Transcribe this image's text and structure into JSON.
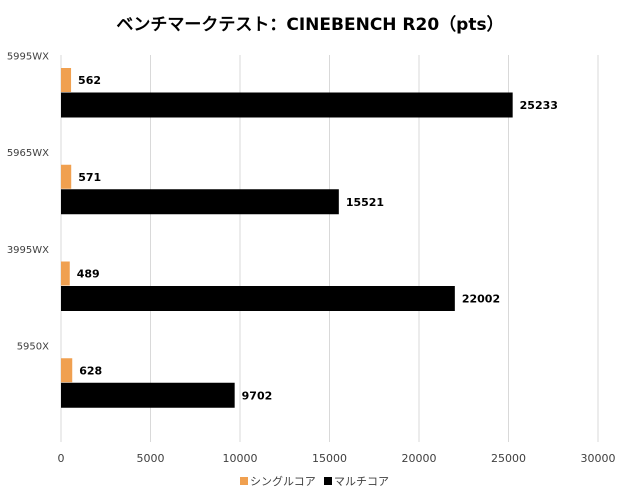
{
  "chart_data": {
    "type": "bar",
    "orientation": "horizontal",
    "title": "ベンチマークテスト：CINEBENCH R20（pts）",
    "categories": [
      "5995WX",
      "5965WX",
      "3995WX",
      "5950X"
    ],
    "series": [
      {
        "name": "シングルコア",
        "values": [
          562,
          571,
          489,
          628
        ],
        "color": "#f0a050"
      },
      {
        "name": "マルチコア",
        "values": [
          25233,
          15521,
          22002,
          9702
        ],
        "color": "#000000"
      }
    ],
    "xlim": [
      0,
      30000
    ],
    "xticks": [
      0,
      5000,
      10000,
      15000,
      20000,
      25000,
      30000
    ],
    "grid": true,
    "legend_position": "bottom",
    "data_labels": true
  }
}
